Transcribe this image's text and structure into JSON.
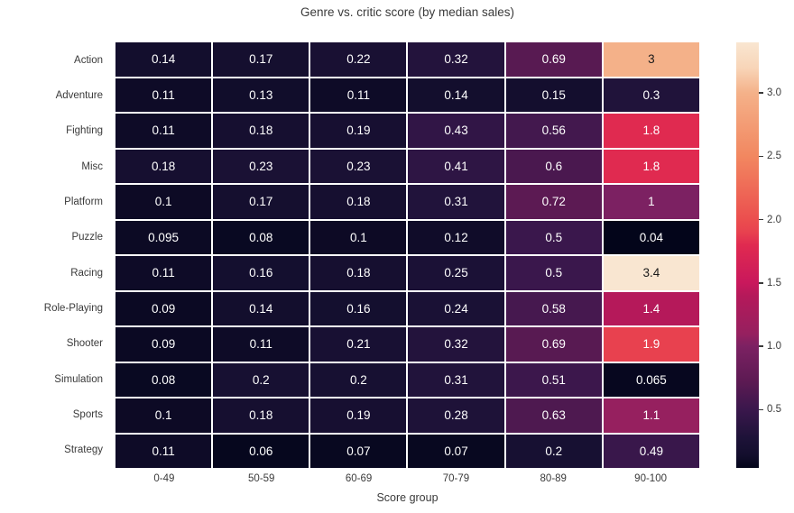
{
  "chart_data": {
    "type": "heatmap",
    "title": "Genre vs. critic score (by median sales)",
    "xlabel": "Score group",
    "ylabel": "",
    "x_categories": [
      "0-49",
      "50-59",
      "60-69",
      "70-79",
      "80-89",
      "90-100"
    ],
    "y_categories": [
      "Action",
      "Adventure",
      "Fighting",
      "Misc",
      "Platform",
      "Puzzle",
      "Racing",
      "Role-Playing",
      "Shooter",
      "Simulation",
      "Sports",
      "Strategy"
    ],
    "values": [
      [
        0.14,
        0.17,
        0.22,
        0.32,
        0.69,
        3
      ],
      [
        0.11,
        0.13,
        0.11,
        0.14,
        0.15,
        0.3
      ],
      [
        0.11,
        0.18,
        0.19,
        0.43,
        0.56,
        1.8
      ],
      [
        0.18,
        0.23,
        0.23,
        0.41,
        0.6,
        1.8
      ],
      [
        0.1,
        0.17,
        0.18,
        0.31,
        0.72,
        1
      ],
      [
        0.095,
        0.08,
        0.1,
        0.12,
        0.5,
        0.04
      ],
      [
        0.11,
        0.16,
        0.18,
        0.25,
        0.5,
        3.4
      ],
      [
        0.09,
        0.14,
        0.16,
        0.24,
        0.58,
        1.4
      ],
      [
        0.09,
        0.11,
        0.21,
        0.32,
        0.69,
        1.9
      ],
      [
        0.08,
        0.2,
        0.2,
        0.31,
        0.51,
        0.065
      ],
      [
        0.1,
        0.18,
        0.19,
        0.28,
        0.63,
        1.1
      ],
      [
        0.11,
        0.06,
        0.07,
        0.07,
        0.2,
        0.49
      ]
    ],
    "vmin": 0.04,
    "vmax": 3.4,
    "colorbar_ticks": [
      3.0,
      2.5,
      2.0,
      1.5,
      1.0,
      0.5
    ],
    "colormap": "rocket",
    "colormap_stops": [
      [
        0.0,
        "#03051A"
      ],
      [
        0.03,
        "#130E2D"
      ],
      [
        0.07,
        "#1D1238"
      ],
      [
        0.137,
        "#3A174C"
      ],
      [
        0.202,
        "#5C1A53"
      ],
      [
        0.286,
        "#7C2162"
      ],
      [
        0.315,
        "#96205F"
      ],
      [
        0.405,
        "#B5195A"
      ],
      [
        0.435,
        "#C9185C"
      ],
      [
        0.524,
        "#E02A50"
      ],
      [
        0.554,
        "#E8414F"
      ],
      [
        0.583,
        "#EB4E4E"
      ],
      [
        0.732,
        "#F28760"
      ],
      [
        0.881,
        "#F4B189"
      ],
      [
        0.94,
        "#F8D5B8"
      ],
      [
        1.0,
        "#F9E6D1"
      ]
    ],
    "annotation_colors": {
      "light": "#FFFFFF",
      "dark": "#1A1A1A"
    },
    "grid_color": "#FFFFFF",
    "legend_position": "right-colorbar"
  }
}
